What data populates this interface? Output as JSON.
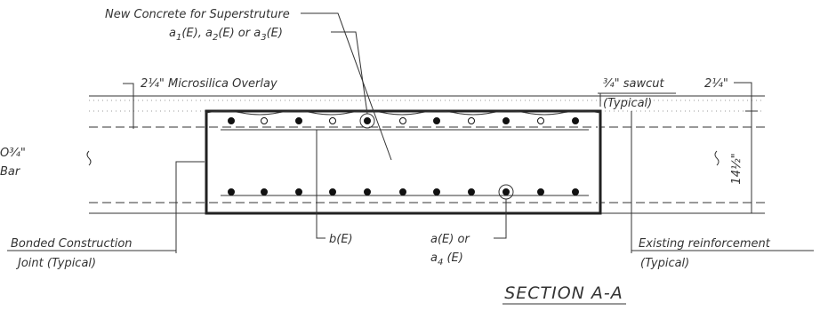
{
  "labels": {
    "new_concrete": "New Concrete for Superstruture",
    "top_bars": [
      "a",
      "1",
      "(E), a",
      "2",
      "(E) or a",
      "3",
      "(E)"
    ],
    "overlay": "2¼\" Microsilica Overlay",
    "sawcut": "¾\" sawcut",
    "sawcut_typical": "(Typical)",
    "overlay_dim": "2¼\"",
    "depth_dim": "14½\"",
    "left_bar_1": "O¾\"",
    "left_bar_2": "Bar",
    "joint_1": "Bonded Construction",
    "joint_2": "Joint (Typical)",
    "b_bar": "b(E)",
    "a_bar_1": "a(E) or",
    "a_bar_2": [
      "a",
      "4",
      " (E)"
    ],
    "existing_1": "Existing reinforcement",
    "existing_2": "(Typical)",
    "section": "SECTION A-A"
  }
}
